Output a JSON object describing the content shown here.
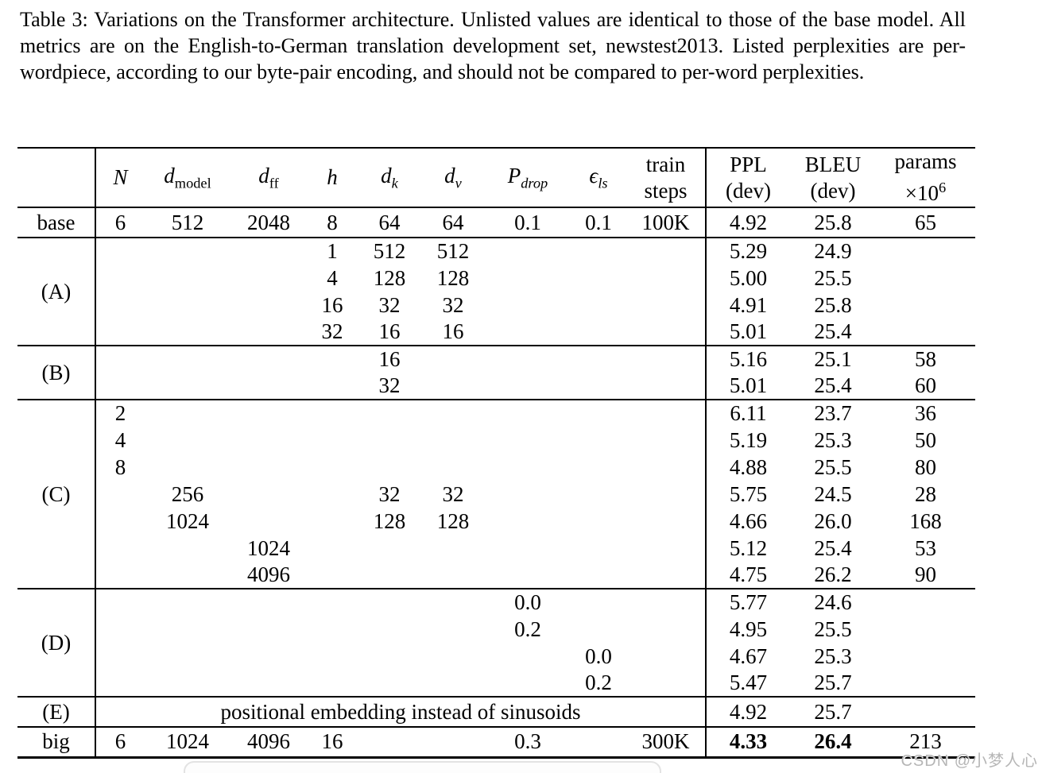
{
  "caption": "Table 3: Variations on the Transformer architecture. Unlisted values are identical to those of the base model. All metrics are on the English-to-German translation development set, newstest2013. Listed perplexities are per-wordpiece, according to our byte-pair encoding, and should not be compared to per-word perplexities.",
  "watermark": "CSDN @小梦人心",
  "table": {
    "headers": [
      {
        "id": "row-label",
        "text": ""
      },
      {
        "id": "N",
        "math": "N"
      },
      {
        "id": "d-model",
        "math": "d",
        "sub": "model",
        "italic_sub": false
      },
      {
        "id": "d-ff",
        "math": "d",
        "sub": "ff",
        "italic_sub": false
      },
      {
        "id": "h",
        "math": "h"
      },
      {
        "id": "d-k",
        "math": "d",
        "sub": "k",
        "italic_sub": true
      },
      {
        "id": "d-v",
        "math": "d",
        "sub": "v",
        "italic_sub": true
      },
      {
        "id": "p-drop",
        "math": "P",
        "sub": "drop",
        "italic_sub": true
      },
      {
        "id": "eps-ls",
        "math": "ϵ",
        "sub": "ls",
        "italic_sub": true
      },
      {
        "id": "train-steps",
        "lines": [
          "train",
          "steps"
        ]
      },
      {
        "id": "ppl-dev",
        "lines": [
          "PPL",
          "(dev)"
        ]
      },
      {
        "id": "bleu-dev",
        "lines": [
          "BLEU",
          "(dev)"
        ]
      },
      {
        "id": "params",
        "lines": [
          "params",
          "×10"
        ],
        "sup": "6"
      }
    ],
    "sections": [
      {
        "label": "base",
        "tall": true,
        "rows": [
          [
            "6",
            "512",
            "2048",
            "8",
            "64",
            "64",
            "0.1",
            "0.1",
            "100K",
            "4.92",
            "25.8",
            "65"
          ]
        ]
      },
      {
        "label": "(A)",
        "rows": [
          [
            "",
            "",
            "",
            "1",
            "512",
            "512",
            "",
            "",
            "",
            "5.29",
            "24.9",
            ""
          ],
          [
            "",
            "",
            "",
            "4",
            "128",
            "128",
            "",
            "",
            "",
            "5.00",
            "25.5",
            ""
          ],
          [
            "",
            "",
            "",
            "16",
            "32",
            "32",
            "",
            "",
            "",
            "4.91",
            "25.8",
            ""
          ],
          [
            "",
            "",
            "",
            "32",
            "16",
            "16",
            "",
            "",
            "",
            "5.01",
            "25.4",
            ""
          ]
        ]
      },
      {
        "label": "(B)",
        "rows": [
          [
            "",
            "",
            "",
            "",
            "16",
            "",
            "",
            "",
            "",
            "5.16",
            "25.1",
            "58"
          ],
          [
            "",
            "",
            "",
            "",
            "32",
            "",
            "",
            "",
            "",
            "5.01",
            "25.4",
            "60"
          ]
        ]
      },
      {
        "label": "(C)",
        "rows": [
          [
            "2",
            "",
            "",
            "",
            "",
            "",
            "",
            "",
            "",
            "6.11",
            "23.7",
            "36"
          ],
          [
            "4",
            "",
            "",
            "",
            "",
            "",
            "",
            "",
            "",
            "5.19",
            "25.3",
            "50"
          ],
          [
            "8",
            "",
            "",
            "",
            "",
            "",
            "",
            "",
            "",
            "4.88",
            "25.5",
            "80"
          ],
          [
            "",
            "256",
            "",
            "",
            "32",
            "32",
            "",
            "",
            "",
            "5.75",
            "24.5",
            "28"
          ],
          [
            "",
            "1024",
            "",
            "",
            "128",
            "128",
            "",
            "",
            "",
            "4.66",
            "26.0",
            "168"
          ],
          [
            "",
            "",
            "1024",
            "",
            "",
            "",
            "",
            "",
            "",
            "5.12",
            "25.4",
            "53"
          ],
          [
            "",
            "",
            "4096",
            "",
            "",
            "",
            "",
            "",
            "",
            "4.75",
            "26.2",
            "90"
          ]
        ]
      },
      {
        "label": "(D)",
        "rows": [
          [
            "",
            "",
            "",
            "",
            "",
            "",
            "0.0",
            "",
            "",
            "5.77",
            "24.6",
            ""
          ],
          [
            "",
            "",
            "",
            "",
            "",
            "",
            "0.2",
            "",
            "",
            "4.95",
            "25.5",
            ""
          ],
          [
            "",
            "",
            "",
            "",
            "",
            "",
            "",
            "0.0",
            "",
            "4.67",
            "25.3",
            ""
          ],
          [
            "",
            "",
            "",
            "",
            "",
            "",
            "",
            "0.2",
            "",
            "5.47",
            "25.7",
            ""
          ]
        ]
      },
      {
        "label": "(E)",
        "tall": true,
        "span_text": "positional embedding instead of sinusoids",
        "rows": [
          [
            "",
            "",
            "",
            "",
            "",
            "",
            "",
            "",
            "",
            "4.92",
            "25.7",
            ""
          ]
        ]
      },
      {
        "label": "big",
        "tall": true,
        "bold_cols": [
          9,
          10
        ],
        "rows": [
          [
            "6",
            "1024",
            "4096",
            "16",
            "",
            "",
            "0.3",
            "",
            "300K",
            "4.33",
            "26.4",
            "213"
          ]
        ]
      }
    ]
  }
}
